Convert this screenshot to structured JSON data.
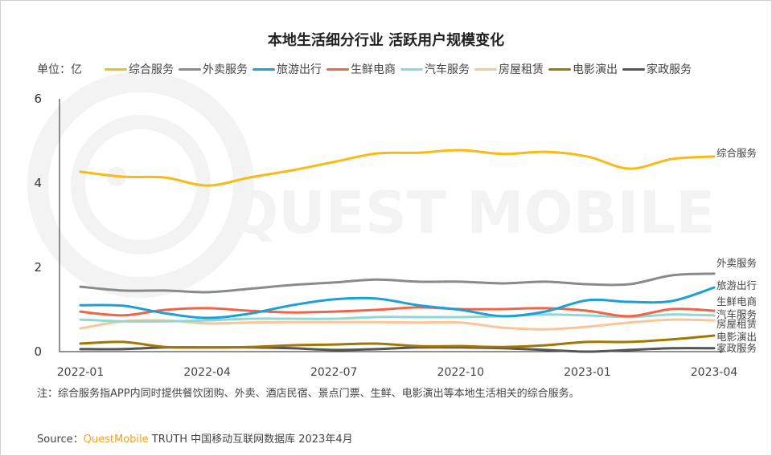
{
  "chart_data": {
    "type": "line",
    "title": "本地生活细分行业 活跃用户规模变化",
    "ylabel": "单位：亿",
    "xlabel": "",
    "ylim": [
      0,
      6
    ],
    "yticks": [
      0,
      2,
      4,
      6
    ],
    "grid": false,
    "legend_position": "top",
    "x": [
      "2022-01",
      "2022-02",
      "2022-03",
      "2022-04",
      "2022-05",
      "2022-06",
      "2022-07",
      "2022-08",
      "2022-09",
      "2022-10",
      "2022-11",
      "2022-12",
      "2023-01",
      "2023-02",
      "2023-03",
      "2023-04"
    ],
    "xtick_labels": [
      "2022-01",
      "2022-04",
      "2022-07",
      "2022-10",
      "2023-01",
      "2023-04"
    ],
    "series": [
      {
        "name": "综合服务",
        "color": "#F9BA16",
        "values": [
          4.27,
          4.15,
          4.13,
          3.94,
          4.13,
          4.3,
          4.5,
          4.7,
          4.72,
          4.78,
          4.69,
          4.74,
          4.63,
          4.34,
          4.57,
          4.63
        ]
      },
      {
        "name": "外卖服务",
        "color": "#8A8A8A",
        "values": [
          1.54,
          1.45,
          1.45,
          1.41,
          1.49,
          1.58,
          1.64,
          1.71,
          1.66,
          1.66,
          1.62,
          1.66,
          1.6,
          1.6,
          1.81,
          1.85
        ]
      },
      {
        "name": "旅游出行",
        "color": "#1E9FD8",
        "values": [
          1.1,
          1.09,
          0.91,
          0.8,
          0.9,
          1.1,
          1.24,
          1.26,
          1.1,
          0.99,
          0.84,
          0.95,
          1.22,
          1.18,
          1.2,
          1.52
        ]
      },
      {
        "name": "生鲜电商",
        "color": "#EE6547",
        "values": [
          0.95,
          0.86,
          0.99,
          1.03,
          0.97,
          0.93,
          0.95,
          0.99,
          1.05,
          1.01,
          1.01,
          1.03,
          0.97,
          0.84,
          1.01,
          0.97
        ]
      },
      {
        "name": "汽车服务",
        "color": "#8ED8D6",
        "values": [
          0.76,
          0.72,
          0.72,
          0.74,
          0.78,
          0.78,
          0.78,
          0.82,
          0.82,
          0.82,
          0.84,
          0.88,
          0.86,
          0.82,
          0.88,
          0.86
        ]
      },
      {
        "name": "房屋租赁",
        "color": "#FCC497",
        "values": [
          0.55,
          0.72,
          0.74,
          0.67,
          0.69,
          0.7,
          0.7,
          0.7,
          0.69,
          0.69,
          0.57,
          0.53,
          0.59,
          0.69,
          0.76,
          0.74
        ]
      },
      {
        "name": "电影演出",
        "color": "#A27600",
        "values": [
          0.19,
          0.23,
          0.11,
          0.1,
          0.11,
          0.15,
          0.17,
          0.19,
          0.13,
          0.13,
          0.11,
          0.15,
          0.23,
          0.23,
          0.29,
          0.38
        ]
      },
      {
        "name": "家政服务",
        "color": "#555555",
        "values": [
          0.06,
          0.06,
          0.1,
          0.1,
          0.1,
          0.08,
          0.04,
          0.06,
          0.1,
          0.1,
          0.08,
          0.04,
          0.0,
          0.04,
          0.08,
          0.08
        ]
      }
    ],
    "end_labels": [
      "综合服务",
      "外卖服务",
      "旅游出行",
      "生鲜电商",
      "汽车服务",
      "房屋租赁",
      "电影演出",
      "家政服务"
    ]
  },
  "watermark": "QUEST MOBILE",
  "note": "注：综合服务指APP内同时提供餐饮团购、外卖、酒店民宿、景点门票、生鲜、电影演出等本地生活相关的综合服务。",
  "source": {
    "prefix": "Source：",
    "brand": "QuestMobile",
    "rest": " TRUTH 中国移动互联网数据库 2023年4月"
  }
}
